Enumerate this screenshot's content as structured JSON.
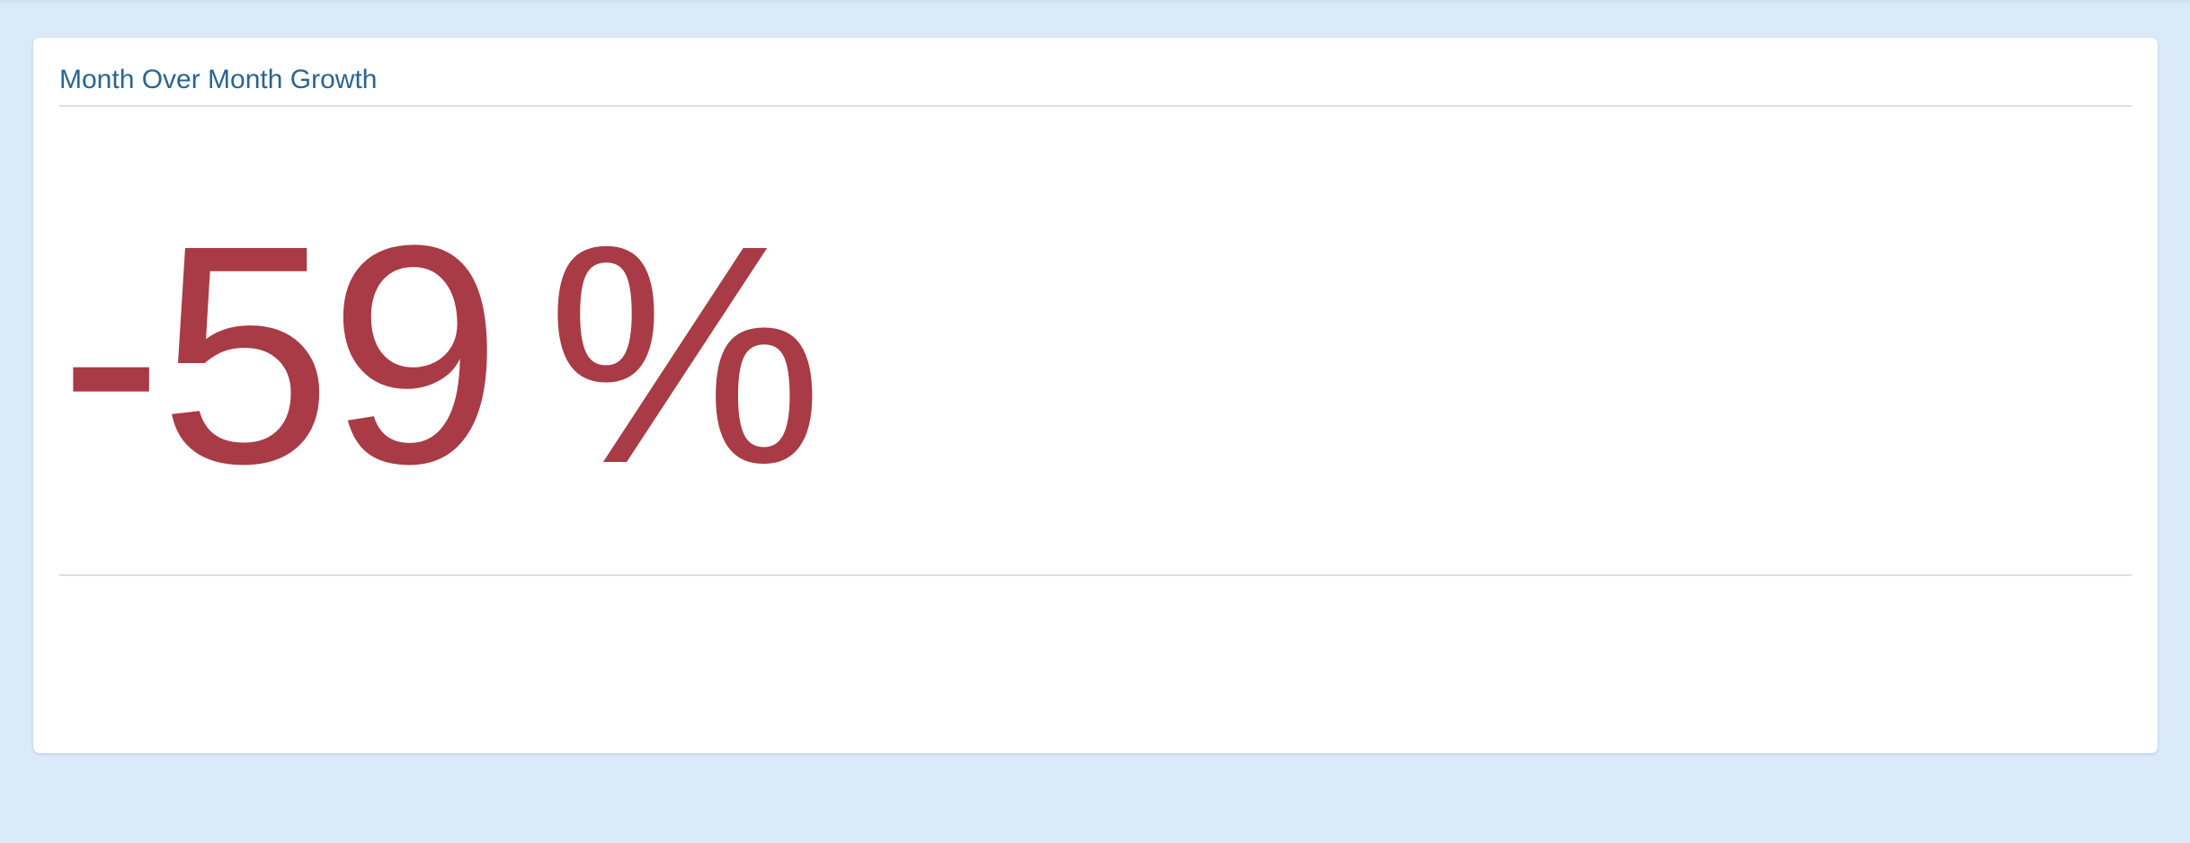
{
  "widget": {
    "title": "Month Over Month Growth",
    "value": "-59",
    "unit": "%",
    "value_color": "#a83b45",
    "title_color": "#2a6491"
  },
  "colors": {
    "background": "#dbeaf9",
    "card": "#ffffff",
    "divider": "#dcdfe3"
  }
}
